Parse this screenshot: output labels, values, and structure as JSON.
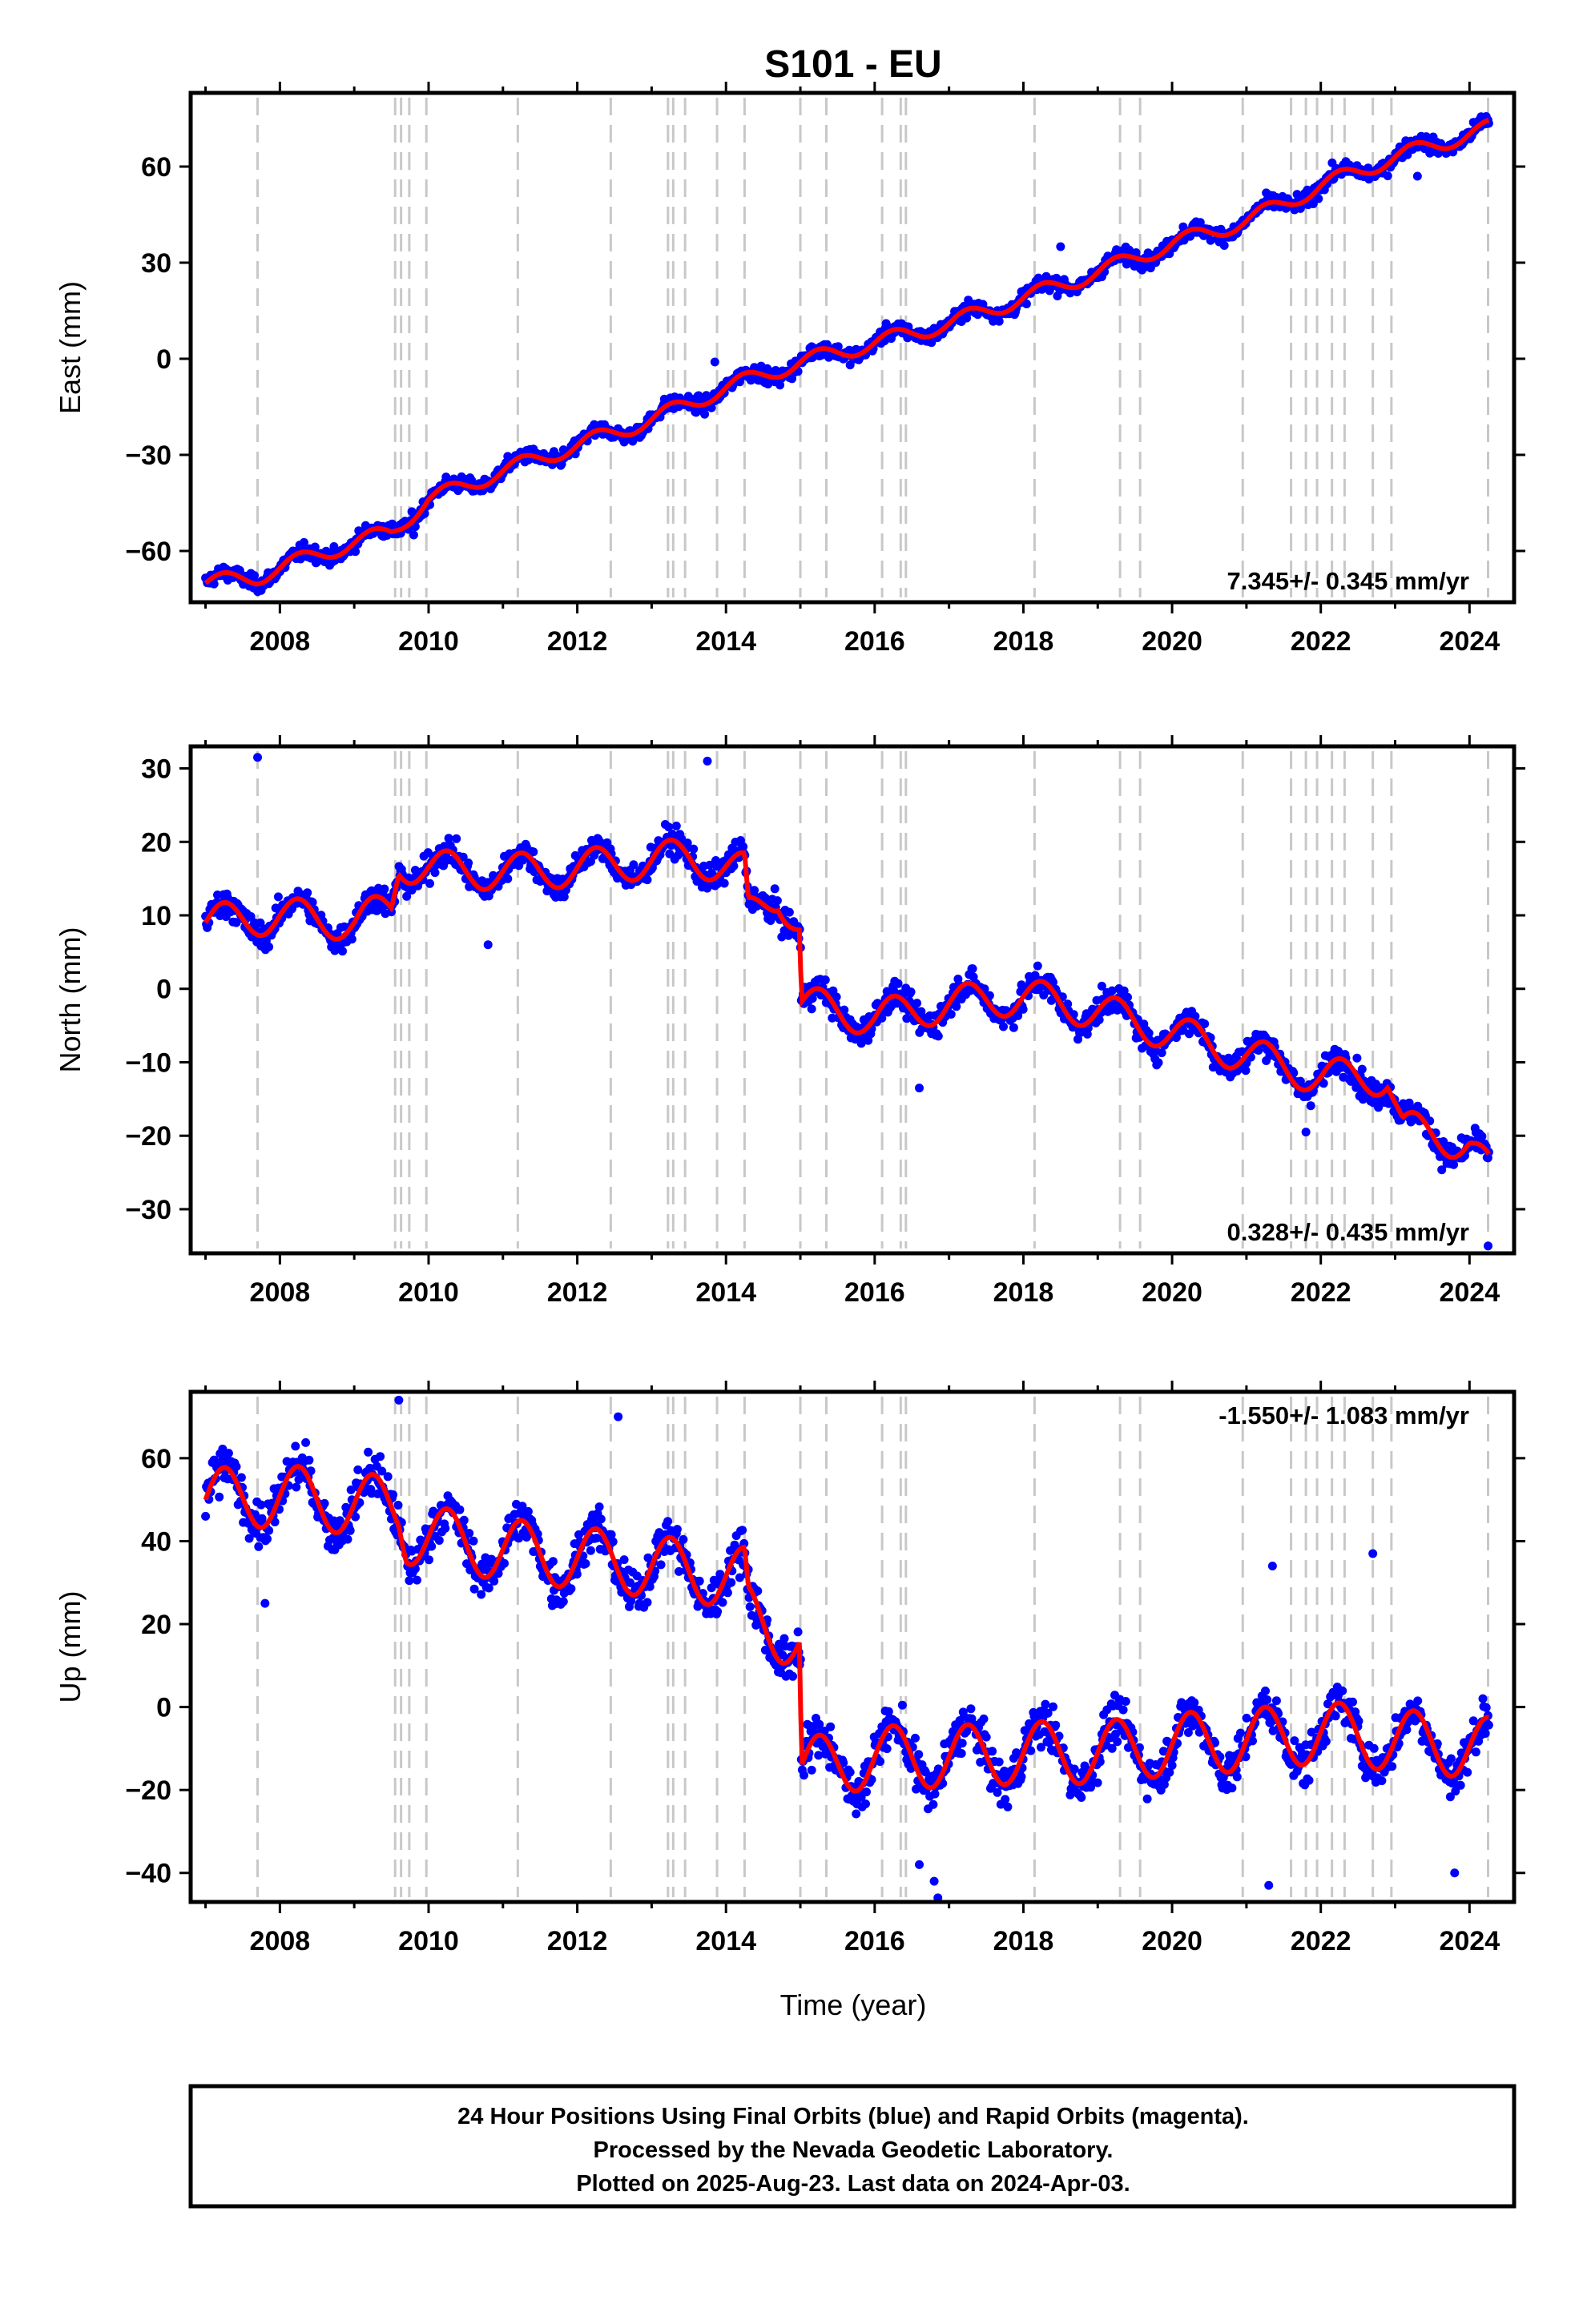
{
  "title": "S101 - EU",
  "xlabel": "Time (year)",
  "footer": {
    "line1": "24 Hour Positions Using Final Orbits (blue) and Rapid Orbits (magenta).",
    "line2": "Processed by the Nevada Geodetic Laboratory.",
    "line3": "Plotted on 2025-Aug-23. Last data on 2024-Apr-03."
  },
  "colors": {
    "points": "#0000ff",
    "model": "#ff0000",
    "events": "#c8c8c8",
    "frame": "#000000"
  },
  "chart_data": [
    {
      "type": "scatter",
      "panel": "east",
      "ylabel": "East (mm)",
      "xlim": [
        2006.8,
        2024.6
      ],
      "ylim": [
        -76,
        83
      ],
      "xticks": [
        2008,
        2010,
        2012,
        2014,
        2016,
        2018,
        2020,
        2022,
        2024
      ],
      "yticks": [
        -60,
        -30,
        0,
        30,
        60
      ],
      "rate_label": "7.345+/- 0.345 mm/yr",
      "rate_position": "bottom-right",
      "event_lines": [
        2007.7,
        2009.55,
        2009.63,
        2009.74,
        2009.97,
        2011.2,
        2012.45,
        2013.22,
        2013.29,
        2013.45,
        2013.88,
        2014.25,
        2015.0,
        2015.35,
        2016.1,
        2016.35,
        2016.42,
        2018.15,
        2019.3,
        2019.57,
        2020.95,
        2021.6,
        2021.8,
        2021.95,
        2022.15,
        2022.32,
        2022.7,
        2022.95,
        2024.25
      ],
      "x_range": [
        2007.0,
        2024.26
      ],
      "model_anchors": [
        [
          2007.0,
          -70
        ],
        [
          2007.7,
          -68
        ],
        [
          2008.5,
          -61
        ],
        [
          2009.5,
          -54
        ],
        [
          2010.0,
          -44
        ],
        [
          2011.0,
          -35
        ],
        [
          2012.0,
          -27
        ],
        [
          2013.0,
          -19
        ],
        [
          2014.0,
          -9
        ],
        [
          2015.0,
          -1
        ],
        [
          2016.0,
          5
        ],
        [
          2017.0,
          11
        ],
        [
          2018.0,
          19
        ],
        [
          2019.0,
          27
        ],
        [
          2020.0,
          36
        ],
        [
          2021.0,
          43
        ],
        [
          2022.0,
          54
        ],
        [
          2023.0,
          63
        ],
        [
          2024.26,
          72
        ]
      ],
      "seasonal_amplitude": 2.5,
      "noise": 2.0,
      "offsets": [],
      "outliers": [
        [
          2018.5,
          35
        ],
        [
          2013.85,
          -1
        ],
        [
          2009.8,
          -55
        ],
        [
          2023.3,
          57
        ]
      ]
    },
    {
      "type": "scatter",
      "panel": "north",
      "ylabel": "North (mm)",
      "xlim": [
        2006.8,
        2024.6
      ],
      "ylim": [
        -36,
        33
      ],
      "xticks": [
        2008,
        2010,
        2012,
        2014,
        2016,
        2018,
        2020,
        2022,
        2024
      ],
      "yticks": [
        -30,
        -20,
        -10,
        0,
        10,
        20,
        30
      ],
      "rate_label": "0.328+/- 0.435 mm/yr",
      "rate_position": "bottom-right",
      "event_lines": [
        2007.7,
        2009.55,
        2009.63,
        2009.74,
        2009.97,
        2011.2,
        2012.45,
        2013.22,
        2013.29,
        2013.45,
        2013.88,
        2014.25,
        2015.0,
        2015.35,
        2016.1,
        2016.35,
        2016.42,
        2018.15,
        2019.3,
        2019.57,
        2020.95,
        2021.6,
        2021.8,
        2021.95,
        2022.15,
        2022.32,
        2022.7,
        2022.95,
        2024.25
      ],
      "x_range": [
        2007.0,
        2024.26
      ],
      "model_anchors": [
        [
          2007.0,
          9
        ],
        [
          2008.0,
          10
        ],
        [
          2009.0,
          9
        ],
        [
          2009.5,
          11
        ],
        [
          2009.6,
          17
        ],
        [
          2010.5,
          16
        ],
        [
          2011.5,
          16
        ],
        [
          2012.5,
          17
        ],
        [
          2013.5,
          18
        ],
        [
          2014.25,
          16
        ],
        [
          2014.3,
          10
        ],
        [
          2014.7,
          13
        ],
        [
          2015.0,
          8
        ],
        [
          2015.01,
          -2
        ],
        [
          2016.0,
          -4
        ],
        [
          2017.0,
          -2
        ],
        [
          2018.0,
          -1
        ],
        [
          2019.0,
          -3
        ],
        [
          2020.0,
          -6
        ],
        [
          2021.0,
          -9
        ],
        [
          2022.0,
          -12
        ],
        [
          2022.9,
          -12
        ],
        [
          2023.1,
          -19
        ],
        [
          2024.0,
          -21
        ],
        [
          2024.26,
          -25
        ]
      ],
      "seasonal_amplitude": 2.5,
      "noise": 1.6,
      "offsets": [],
      "outliers": [
        [
          2007.7,
          31.5
        ],
        [
          2013.75,
          31
        ],
        [
          2010.8,
          6
        ],
        [
          2016.6,
          -13.5
        ],
        [
          2021.8,
          -19.5
        ],
        [
          2024.25,
          -35
        ]
      ]
    },
    {
      "type": "scatter",
      "panel": "up",
      "ylabel": "Up (mm)",
      "xlim": [
        2006.8,
        2024.6
      ],
      "ylim": [
        -47,
        76
      ],
      "xticks": [
        2008,
        2010,
        2012,
        2014,
        2016,
        2018,
        2020,
        2022,
        2024
      ],
      "yticks": [
        -40,
        -20,
        0,
        20,
        40,
        60
      ],
      "rate_label": "-1.550+/- 1.083 mm/yr",
      "rate_position": "top-right",
      "event_lines": [
        2007.7,
        2009.55,
        2009.63,
        2009.74,
        2009.97,
        2011.2,
        2012.45,
        2013.22,
        2013.29,
        2013.45,
        2013.88,
        2014.25,
        2015.0,
        2015.35,
        2016.1,
        2016.35,
        2016.42,
        2018.15,
        2019.3,
        2019.57,
        2020.95,
        2021.6,
        2021.8,
        2021.95,
        2022.15,
        2022.32,
        2022.7,
        2022.95,
        2024.25
      ],
      "x_range": [
        2007.0,
        2024.26
      ],
      "model_anchors": [
        [
          2007.0,
          50
        ],
        [
          2008.0,
          51
        ],
        [
          2009.0,
          49
        ],
        [
          2009.6,
          48
        ],
        [
          2009.7,
          42
        ],
        [
          2011.0,
          38
        ],
        [
          2012.0,
          36
        ],
        [
          2013.0,
          34
        ],
        [
          2014.25,
          31
        ],
        [
          2014.3,
          22
        ],
        [
          2015.0,
          16
        ],
        [
          2015.01,
          -15
        ],
        [
          2016.0,
          -12
        ],
        [
          2017.0,
          -12
        ],
        [
          2018.0,
          -11
        ],
        [
          2019.0,
          -11
        ],
        [
          2020.0,
          -9
        ],
        [
          2021.0,
          -8
        ],
        [
          2022.0,
          -6
        ],
        [
          2023.0,
          -8
        ],
        [
          2024.26,
          -10
        ]
      ],
      "seasonal_amplitude": 7.5,
      "noise": 4.5,
      "offsets": [],
      "outliers": [
        [
          2007.8,
          25
        ],
        [
          2009.6,
          74
        ],
        [
          2012.55,
          70
        ],
        [
          2016.6,
          -38
        ],
        [
          2016.8,
          -42
        ],
        [
          2016.85,
          -46
        ],
        [
          2021.3,
          -43
        ],
        [
          2021.35,
          34
        ],
        [
          2022.7,
          37
        ],
        [
          2023.8,
          -40
        ]
      ]
    }
  ]
}
